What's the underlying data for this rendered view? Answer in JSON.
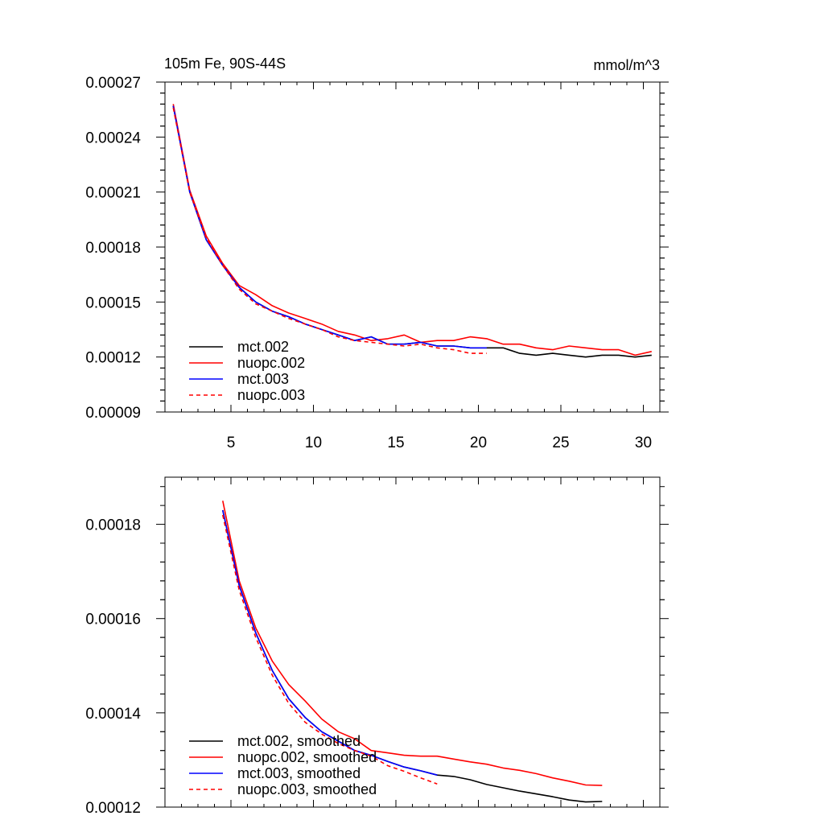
{
  "chart_data": [
    {
      "type": "line",
      "title": "105m Fe, 90S-44S",
      "units": "mmol/m^3",
      "xlabel": "",
      "ylabel": "",
      "xlim": [
        1,
        31
      ],
      "ylim": [
        9e-05,
        0.00027
      ],
      "xticks": [
        5,
        10,
        15,
        20,
        25,
        30
      ],
      "yticks": [
        9e-05,
        0.00012,
        0.00015,
        0.00018,
        0.00021,
        0.00024,
        0.00027
      ],
      "ytick_labels": [
        "0.00009",
        "0.00012",
        "0.00015",
        "0.00018",
        "0.00021",
        "0.00024",
        "0.00027"
      ],
      "legend_position": "bottom-left",
      "series": [
        {
          "name": "mct.002",
          "color": "#000000",
          "dash": "solid",
          "x": [
            1.5,
            2.5,
            3.5,
            4.5,
            5.5,
            6.5,
            7.5,
            8.5,
            9.5,
            10.5,
            11.5,
            12.5,
            13.5,
            14.5,
            15.5,
            16.5,
            17.5,
            18.5,
            19.5,
            20.5,
            21.5,
            22.5,
            23.5,
            24.5,
            25.5,
            26.5,
            27.5,
            28.5,
            29.5,
            30.5
          ],
          "values": [
            0.000257,
            0.00021,
            0.000184,
            0.00017,
            0.000158,
            0.00015,
            0.000145,
            0.000142,
            0.000138,
            0.000135,
            0.000132,
            0.000129,
            0.000131,
            0.000127,
            0.000127,
            0.000128,
            0.000126,
            0.000126,
            0.000125,
            0.000125,
            0.000125,
            0.000122,
            0.000121,
            0.000122,
            0.000121,
            0.00012,
            0.000121,
            0.000121,
            0.00012,
            0.000121
          ]
        },
        {
          "name": "nuopc.002",
          "color": "#ff0000",
          "dash": "solid",
          "x": [
            1.5,
            2.5,
            3.5,
            4.5,
            5.5,
            6.5,
            7.5,
            8.5,
            9.5,
            10.5,
            11.5,
            12.5,
            13.5,
            14.5,
            15.5,
            16.5,
            17.5,
            18.5,
            19.5,
            20.5,
            21.5,
            22.5,
            23.5,
            24.5,
            25.5,
            26.5,
            27.5,
            28.5,
            29.5,
            30.5
          ],
          "values": [
            0.000258,
            0.000211,
            0.000186,
            0.000171,
            0.000159,
            0.000154,
            0.000148,
            0.000144,
            0.000141,
            0.000138,
            0.000134,
            0.000132,
            0.000129,
            0.00013,
            0.000132,
            0.000128,
            0.000129,
            0.000129,
            0.000131,
            0.00013,
            0.000127,
            0.000127,
            0.000125,
            0.000124,
            0.000126,
            0.000125,
            0.000124,
            0.000124,
            0.000121,
            0.000123
          ]
        },
        {
          "name": "mct.003",
          "color": "#0000ff",
          "dash": "solid",
          "x": [
            1.5,
            2.5,
            3.5,
            4.5,
            5.5,
            6.5,
            7.5,
            8.5,
            9.5,
            10.5,
            11.5,
            12.5,
            13.5,
            14.5,
            15.5,
            16.5,
            17.5,
            18.5,
            19.5,
            20.5
          ],
          "values": [
            0.000257,
            0.00021,
            0.000184,
            0.00017,
            0.000158,
            0.00015,
            0.000145,
            0.000142,
            0.000138,
            0.000135,
            0.000132,
            0.000129,
            0.000131,
            0.000127,
            0.000127,
            0.000128,
            0.000126,
            0.000126,
            0.000125,
            0.000125
          ]
        },
        {
          "name": "nuopc.003",
          "color": "#ff0000",
          "dash": "dashed",
          "x": [
            1.5,
            2.5,
            3.5,
            4.5,
            5.5,
            6.5,
            7.5,
            8.5,
            9.5,
            10.5,
            11.5,
            12.5,
            13.5,
            14.5,
            15.5,
            16.5,
            17.5,
            18.5,
            19.5,
            20.5
          ],
          "values": [
            0.000256,
            0.00021,
            0.000185,
            0.00017,
            0.000157,
            0.000149,
            0.000145,
            0.000141,
            0.000138,
            0.000135,
            0.000131,
            0.000129,
            0.000128,
            0.000127,
            0.000126,
            0.000127,
            0.000125,
            0.000124,
            0.000122,
            0.000122
          ]
        }
      ]
    },
    {
      "type": "line",
      "title": "",
      "xlabel": "",
      "ylabel": "",
      "xlim": [
        1,
        31
      ],
      "ylim": [
        0.00012,
        0.00019
      ],
      "xticks": [
        5,
        10,
        15,
        20,
        25,
        30
      ],
      "yticks": [
        0.00012,
        0.00014,
        0.00016,
        0.00018
      ],
      "ytick_labels": [
        "0.00012",
        "0.00014",
        "0.00016",
        "0.00018"
      ],
      "legend_position": "bottom-left",
      "series": [
        {
          "name": "mct.002, smoothed",
          "color": "#000000",
          "dash": "solid",
          "x": [
            4.5,
            5.5,
            6.5,
            7.5,
            8.5,
            9.5,
            10.5,
            11.5,
            12.5,
            13.5,
            14.5,
            15.5,
            16.5,
            17.5,
            18.5,
            19.5,
            20.5,
            21.5,
            22.5,
            23.5,
            24.5,
            25.5,
            26.5,
            27.5
          ],
          "values": [
            0.000183,
            0.000167,
            0.000157,
            0.000149,
            0.000143,
            0.000139,
            0.000136,
            0.000134,
            0.000132,
            0.000131,
            0.0001297,
            0.0001285,
            0.0001277,
            0.0001268,
            0.0001265,
            0.0001258,
            0.0001248,
            0.0001241,
            0.0001234,
            0.0001228,
            0.0001222,
            0.0001215,
            0.0001211,
            0.0001212
          ]
        },
        {
          "name": "nuopc.002, smoothed",
          "color": "#ff0000",
          "dash": "solid",
          "x": [
            4.5,
            5.5,
            6.5,
            7.5,
            8.5,
            9.5,
            10.5,
            11.5,
            12.5,
            13.5,
            14.5,
            15.5,
            16.5,
            17.5,
            18.5,
            19.5,
            20.5,
            21.5,
            22.5,
            23.5,
            24.5,
            25.5,
            26.5,
            27.5
          ],
          "values": [
            0.000185,
            0.000168,
            0.000158,
            0.000151,
            0.000146,
            0.0001425,
            0.0001387,
            0.000136,
            0.0001345,
            0.000132,
            0.0001315,
            0.000131,
            0.0001308,
            0.0001308,
            0.0001302,
            0.0001296,
            0.0001291,
            0.0001283,
            0.0001278,
            0.0001271,
            0.0001262,
            0.0001255,
            0.0001247,
            0.0001246
          ]
        },
        {
          "name": "mct.003, smoothed",
          "color": "#0000ff",
          "dash": "solid",
          "x": [
            4.5,
            5.5,
            6.5,
            7.5,
            8.5,
            9.5,
            10.5,
            11.5,
            12.5,
            13.5,
            14.5,
            15.5,
            16.5,
            17.5
          ],
          "values": [
            0.000183,
            0.000167,
            0.000157,
            0.000149,
            0.000143,
            0.000139,
            0.000136,
            0.000134,
            0.000132,
            0.000131,
            0.0001297,
            0.0001285,
            0.0001277,
            0.0001268
          ]
        },
        {
          "name": "nuopc.003, smoothed",
          "color": "#ff0000",
          "dash": "dashed",
          "x": [
            4.5,
            5.5,
            6.5,
            7.5,
            8.5,
            9.5,
            10.5,
            11.5,
            12.5,
            13.5,
            14.5,
            15.5,
            16.5,
            17.5
          ],
          "values": [
            0.000182,
            0.000166,
            0.000156,
            0.000148,
            0.000142,
            0.000138,
            0.0001355,
            0.0001335,
            0.000132,
            0.0001308,
            0.0001288,
            0.0001276,
            0.0001262,
            0.0001249
          ]
        }
      ]
    }
  ]
}
